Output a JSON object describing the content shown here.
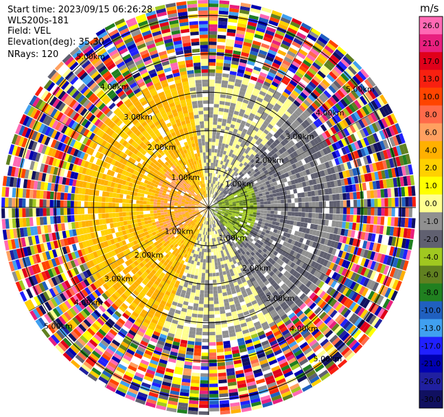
{
  "header": {
    "start_time": "Start time: 2023/09/15 06:26:28",
    "instrument": "WLS200s-181",
    "field": "Field: VEL",
    "elevation": "Elevation(deg): 35.30",
    "nrays": "NRays: 120"
  },
  "chart_data": {
    "type": "heatmap",
    "subtype": "polar-ppi",
    "nrays": 120,
    "elevation_deg": 35.3,
    "range_ring_labels": [
      "1.00km",
      "2.00km",
      "3.00km",
      "4.00km",
      "5.00km"
    ],
    "range_rings_km": [
      1,
      2,
      3,
      4,
      5
    ],
    "colorbar": {
      "unit": "m/s",
      "ticks": [
        "26.0",
        "21.0",
        "17.0",
        "13.0",
        "10.0",
        "8.0",
        "6.0",
        "4.0",
        "2.0",
        "1.0",
        "0.0",
        "-1.0",
        "-2.0",
        "-4.0",
        "-6.0",
        "-8.0",
        "-10.0",
        "-13.0",
        "-17.0",
        "-21.0",
        "-26.0",
        "-30.0"
      ],
      "colors": [
        "#ff69b4",
        "#e8207e",
        "#e0001a",
        "#f82010",
        "#ff4400",
        "#ff6a4a",
        "#ffa060",
        "#ffb000",
        "#ffd000",
        "#ffff00",
        "#ffff90",
        "#909090",
        "#606070",
        "#a0c820",
        "#608020",
        "#208020",
        "#2060c0",
        "#40a0f0",
        "#2020ff",
        "#0000b0",
        "#2020a0",
        "#101060"
      ]
    },
    "velocity_pattern": {
      "description_free": true,
      "inner_radius_km": 3.5,
      "sectors": [
        {
          "from_deg": -10,
          "to_deg": 40,
          "value_ms": -1.0
        },
        {
          "from_deg": 40,
          "to_deg": 150,
          "value_ms": -2.0
        },
        {
          "from_deg": 150,
          "to_deg": 200,
          "value_ms": -1.0
        },
        {
          "from_deg": 200,
          "to_deg": 260,
          "value_ms": 2.0
        },
        {
          "from_deg": 260,
          "to_deg": 350,
          "value_ms": 2.0
        }
      ],
      "core": [
        {
          "from_deg": 60,
          "to_deg": 140,
          "max_km": 1.2,
          "value_ms": -6.0
        },
        {
          "from_deg": 230,
          "to_deg": 320,
          "max_km": 1.4,
          "value_ms": 4.0
        }
      ]
    }
  }
}
